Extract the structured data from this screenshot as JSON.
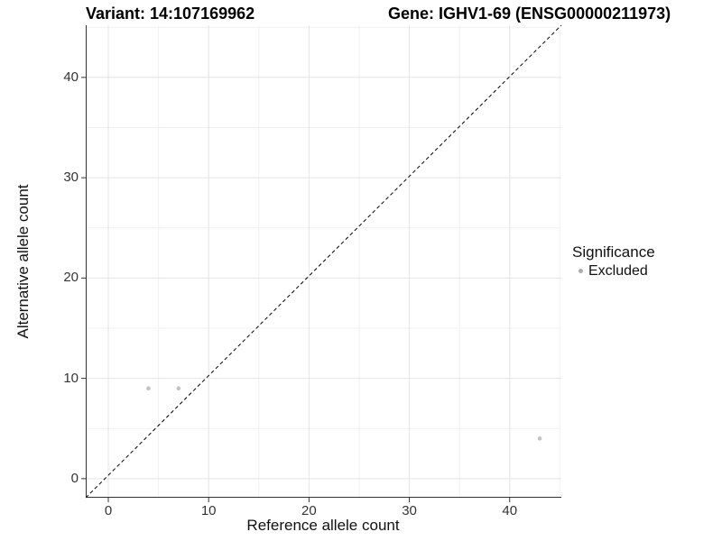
{
  "chart_data": {
    "type": "scatter",
    "titles": {
      "left": "Variant: 14:107169962",
      "right": "Gene: IGHV1-69 (ENSG00000211973)"
    },
    "xlabel": "Reference allele count",
    "ylabel": "Alternative allele count",
    "xlim": [
      -2.25,
      45.15
    ],
    "ylim": [
      -1.9,
      45.2
    ],
    "x_ticks": [
      0,
      10,
      20,
      30,
      40
    ],
    "y_ticks": [
      0,
      10,
      20,
      30,
      40
    ],
    "x_minor_ticks": [
      5,
      15,
      25,
      35,
      45
    ],
    "y_minor_ticks": [
      5,
      15,
      25,
      35,
      45
    ],
    "grid": "major and minor, light gray on white",
    "reference_line": {
      "type": "identity y = x",
      "style": "dashed",
      "color": "#000000"
    },
    "series": [
      {
        "name": "Excluded",
        "marker_color": "#c3c3c3",
        "marker_size_px": 2.3,
        "points": [
          {
            "x": 4,
            "y": 9
          },
          {
            "x": 7,
            "y": 9
          },
          {
            "x": 43,
            "y": 4
          }
        ]
      }
    ],
    "legend": {
      "title": "Significance",
      "position": "right",
      "items": [
        {
          "label": "Excluded",
          "swatch_color": "#ababab"
        }
      ]
    }
  },
  "style": {
    "background": "#ffffff",
    "grid_major_color": "#e4e4e4",
    "grid_minor_color": "#f1f1f1",
    "axis_line_color": "#333333",
    "tick_color": "#333333",
    "tick_label_color": "#333333",
    "title_color": "#000000"
  }
}
